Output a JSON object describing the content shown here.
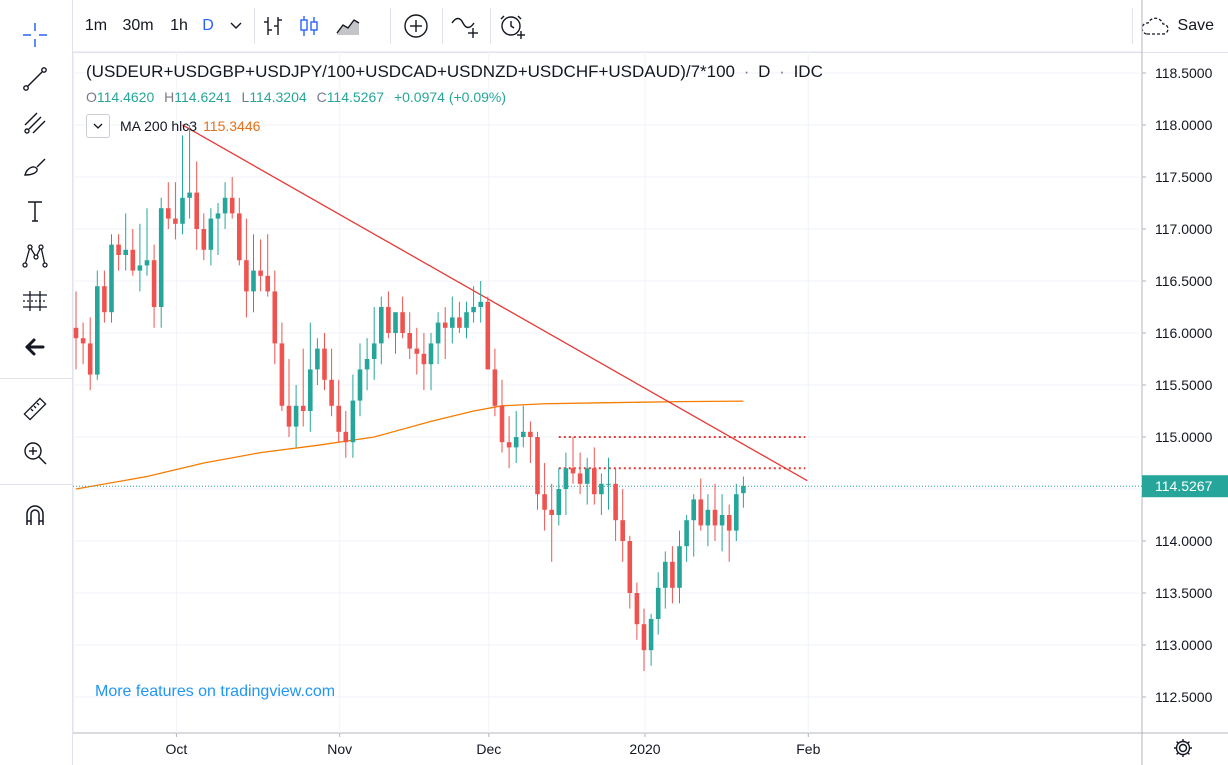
{
  "toolbar": {
    "intervals": [
      "1m",
      "30m",
      "1h",
      "D"
    ],
    "active_interval": "D",
    "save_label": "Save",
    "icons": [
      "chevron-down-icon",
      "bar-chart-icon",
      "candles-icon",
      "area-chart-icon",
      "add-indicator-icon",
      "compare-icon",
      "alert-icon",
      "cloud-save-icon"
    ]
  },
  "left_toolbar": {
    "icons": [
      "crosshair-icon",
      "trendline-icon",
      "fib-icon",
      "brush-icon",
      "text-icon",
      "pattern-icon",
      "measure-tools-icon",
      "back-arrow-icon",
      "ruler-icon",
      "zoom-in-icon",
      "magnet-icon"
    ]
  },
  "legend": {
    "symbol": "(USDEUR+USDGBP+USDJPY/100+USDCAD+USDNZD+USDCHF+USDAUD)/7*100",
    "dot1": "·",
    "interval": "D",
    "dot2": "·",
    "exchange": "IDC",
    "o_label": "O",
    "o_value": "114.4620",
    "h_label": "H",
    "h_value": "114.6241",
    "l_label": "L",
    "l_value": "114.3204",
    "c_label": "C",
    "c_value": "114.5267",
    "change": "+0.0974 (+0.09%)"
  },
  "indicator": {
    "name": "MA 200 hlc3",
    "value": "115.3446"
  },
  "watermark": "More features on tradingview.com",
  "colors": {
    "up": "#26a69a",
    "down": "#ef5350",
    "ma": "#f57c00",
    "trendline": "#e53935",
    "last_price_bg": "#26a69a",
    "accent": "#2962ff"
  },
  "chart_data": {
    "type": "candlestick",
    "ylim": [
      112.3,
      118.7
    ],
    "y_ticks": [
      "118.5000",
      "118.0000",
      "117.5000",
      "117.0000",
      "116.5000",
      "116.0000",
      "115.5000",
      "115.0000",
      "114.5000",
      "114.0000",
      "113.5000",
      "113.0000",
      "112.5000"
    ],
    "x_ticks": [
      {
        "label": "Oct",
        "index": 14
      },
      {
        "label": "Nov",
        "index": 37
      },
      {
        "label": "Dec",
        "index": 58
      },
      {
        "label": "2020",
        "index": 80
      },
      {
        "label": "Feb",
        "index": 103
      }
    ],
    "last_price": "114.5267",
    "series": [
      [
        116.05,
        116.4,
        115.65,
        115.95
      ],
      [
        115.95,
        116.1,
        115.7,
        115.9
      ],
      [
        115.9,
        116.15,
        115.45,
        115.6
      ],
      [
        115.6,
        116.6,
        115.55,
        116.45
      ],
      [
        116.45,
        116.6,
        116.1,
        116.2
      ],
      [
        116.2,
        116.95,
        116.1,
        116.85
      ],
      [
        116.85,
        116.95,
        116.6,
        116.75
      ],
      [
        116.75,
        117.15,
        116.6,
        116.8
      ],
      [
        116.8,
        117.0,
        116.55,
        116.6
      ],
      [
        116.6,
        117.05,
        116.4,
        116.65
      ],
      [
        116.65,
        117.2,
        116.55,
        116.7
      ],
      [
        116.7,
        116.85,
        116.05,
        116.25
      ],
      [
        116.25,
        117.3,
        116.05,
        117.2
      ],
      [
        117.2,
        117.45,
        117.0,
        117.1
      ],
      [
        117.1,
        117.45,
        116.9,
        117.05
      ],
      [
        117.05,
        117.9,
        116.95,
        117.3
      ],
      [
        117.3,
        118.0,
        117.1,
        117.35
      ],
      [
        117.35,
        117.65,
        116.8,
        117.0
      ],
      [
        117.0,
        117.15,
        116.7,
        116.8
      ],
      [
        116.8,
        117.2,
        116.65,
        117.1
      ],
      [
        117.1,
        117.25,
        116.75,
        117.15
      ],
      [
        117.15,
        117.45,
        117.0,
        117.3
      ],
      [
        117.3,
        117.5,
        117.1,
        117.15
      ],
      [
        117.15,
        117.3,
        116.65,
        116.7
      ],
      [
        116.7,
        117.1,
        116.15,
        116.4
      ],
      [
        116.4,
        116.95,
        116.2,
        116.6
      ],
      [
        116.6,
        116.9,
        116.4,
        116.55
      ],
      [
        116.55,
        116.95,
        116.35,
        116.4
      ],
      [
        116.4,
        116.6,
        115.7,
        115.9
      ],
      [
        115.9,
        116.1,
        115.25,
        115.3
      ],
      [
        115.3,
        115.75,
        115.0,
        115.1
      ],
      [
        115.1,
        115.5,
        114.9,
        115.3
      ],
      [
        115.3,
        115.85,
        115.1,
        115.25
      ],
      [
        115.25,
        116.1,
        115.05,
        115.65
      ],
      [
        115.65,
        115.95,
        115.5,
        115.85
      ],
      [
        115.85,
        116.0,
        115.45,
        115.55
      ],
      [
        115.55,
        115.85,
        115.2,
        115.3
      ],
      [
        115.3,
        115.55,
        114.95,
        115.05
      ],
      [
        115.05,
        115.25,
        114.8,
        114.95
      ],
      [
        114.95,
        115.6,
        114.8,
        115.35
      ],
      [
        115.35,
        115.9,
        115.2,
        115.65
      ],
      [
        115.65,
        115.95,
        115.45,
        115.75
      ],
      [
        115.75,
        116.25,
        115.55,
        115.9
      ],
      [
        115.9,
        116.35,
        115.7,
        116.25
      ],
      [
        116.25,
        116.4,
        115.95,
        116.0
      ],
      [
        116.0,
        116.2,
        115.8,
        116.2
      ],
      [
        116.2,
        116.35,
        115.95,
        116.0
      ],
      [
        116.0,
        116.2,
        115.75,
        115.85
      ],
      [
        115.85,
        116.05,
        115.6,
        115.8
      ],
      [
        115.8,
        116.0,
        115.45,
        115.7
      ],
      [
        115.7,
        116.0,
        115.45,
        115.9
      ],
      [
        115.9,
        116.2,
        115.7,
        116.1
      ],
      [
        116.1,
        116.25,
        115.75,
        116.05
      ],
      [
        116.05,
        116.35,
        115.9,
        116.15
      ],
      [
        116.15,
        116.3,
        116.0,
        116.05
      ],
      [
        116.05,
        116.3,
        115.95,
        116.2
      ],
      [
        116.2,
        116.45,
        116.1,
        116.25
      ],
      [
        116.25,
        116.5,
        116.1,
        116.3
      ],
      [
        116.3,
        116.35,
        115.65,
        115.65
      ],
      [
        115.65,
        115.85,
        115.2,
        115.3
      ],
      [
        115.3,
        115.55,
        114.85,
        114.95
      ],
      [
        114.95,
        115.2,
        114.7,
        114.9
      ],
      [
        114.9,
        115.25,
        114.75,
        115.0
      ],
      [
        115.0,
        115.3,
        114.9,
        115.05
      ],
      [
        115.05,
        115.15,
        114.75,
        115.0
      ],
      [
        115.0,
        115.05,
        114.3,
        114.45
      ],
      [
        114.45,
        114.75,
        114.1,
        114.3
      ],
      [
        114.3,
        114.55,
        113.8,
        114.25
      ],
      [
        114.25,
        114.7,
        114.15,
        114.5
      ],
      [
        114.5,
        114.85,
        114.25,
        114.7
      ],
      [
        114.7,
        115.0,
        114.55,
        114.65
      ],
      [
        114.65,
        114.85,
        114.45,
        114.55
      ],
      [
        114.55,
        114.8,
        114.35,
        114.7
      ],
      [
        114.7,
        114.9,
        114.35,
        114.45
      ],
      [
        114.45,
        114.65,
        114.25,
        114.55
      ],
      [
        114.55,
        114.8,
        114.3,
        114.55
      ],
      [
        114.55,
        114.7,
        114.0,
        114.2
      ],
      [
        114.2,
        114.5,
        113.8,
        114.0
      ],
      [
        114.0,
        114.05,
        113.35,
        113.5
      ],
      [
        113.5,
        113.6,
        113.05,
        113.2
      ],
      [
        113.2,
        113.35,
        112.75,
        112.95
      ],
      [
        112.95,
        113.3,
        112.8,
        113.25
      ],
      [
        113.25,
        113.7,
        113.1,
        113.55
      ],
      [
        113.55,
        113.9,
        113.35,
        113.8
      ],
      [
        113.8,
        113.95,
        113.4,
        113.55
      ],
      [
        113.55,
        114.1,
        113.4,
        113.95
      ],
      [
        113.95,
        114.25,
        113.8,
        114.2
      ],
      [
        114.2,
        114.45,
        113.85,
        114.4
      ],
      [
        114.4,
        114.6,
        114.1,
        114.15
      ],
      [
        114.15,
        114.45,
        113.95,
        114.3
      ],
      [
        114.3,
        114.55,
        114.0,
        114.15
      ],
      [
        114.15,
        114.45,
        113.9,
        114.25
      ],
      [
        114.25,
        114.35,
        113.8,
        114.1
      ],
      [
        114.1,
        114.55,
        114.0,
        114.45
      ],
      [
        114.46,
        114.62,
        114.32,
        114.53
      ]
    ],
    "ma200": [
      [
        0,
        114.5
      ],
      [
        10,
        114.62
      ],
      [
        18,
        114.75
      ],
      [
        26,
        114.85
      ],
      [
        34,
        114.92
      ],
      [
        42,
        115.0
      ],
      [
        50,
        115.15
      ],
      [
        56,
        115.25
      ],
      [
        60,
        115.3
      ],
      [
        66,
        115.32
      ],
      [
        75,
        115.33
      ],
      [
        85,
        115.34
      ],
      [
        94,
        115.3446
      ]
    ],
    "trendline": [
      [
        15,
        118.0
      ],
      [
        103,
        114.58
      ]
    ],
    "resistance_levels": [
      {
        "value": 115.0,
        "from": 68,
        "to": 103
      },
      {
        "value": 114.7,
        "from": 68,
        "to": 103
      }
    ]
  }
}
